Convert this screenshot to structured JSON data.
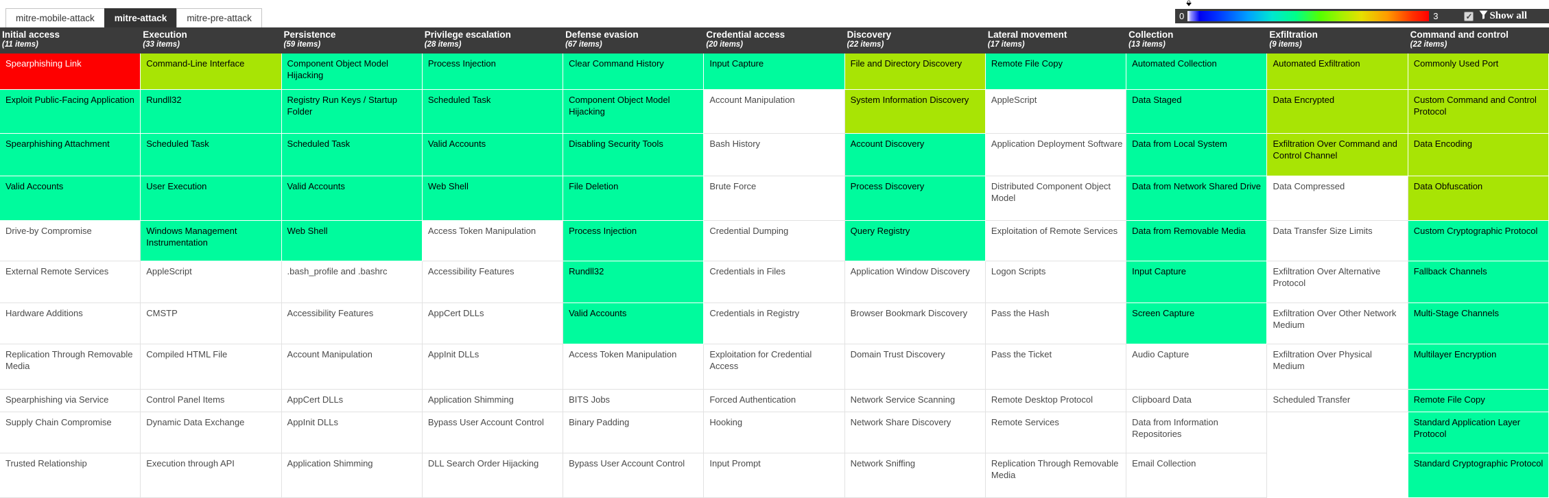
{
  "tabs": [
    {
      "label": "mitre-mobile-attack",
      "active": false
    },
    {
      "label": "mitre-attack",
      "active": true
    },
    {
      "label": "mitre-pre-attack",
      "active": false
    }
  ],
  "legend": {
    "min": "0",
    "max": "3",
    "handle_value": "0",
    "checkbox_checked": true,
    "show_all_label": "Show all"
  },
  "colors": {
    "green": "#00fb9d",
    "yellow": "#a8e405",
    "red": "#fe0000",
    "header_bg": "#3b3b3b"
  },
  "matrix": {
    "columns": [
      {
        "name": "Initial access",
        "items": "(11 items)",
        "techniques": [
          {
            "label": "Spearphishing Link",
            "color": "red"
          },
          {
            "label": "Exploit Public-Facing Application",
            "color": "green"
          },
          {
            "label": "Spearphishing Attachment",
            "color": "green"
          },
          {
            "label": "Valid Accounts",
            "color": "green"
          },
          {
            "label": "Drive-by Compromise",
            "color": "white"
          },
          {
            "label": "External Remote Services",
            "color": "white"
          },
          {
            "label": "Hardware Additions",
            "color": "white"
          },
          {
            "label": "Replication Through Removable Media",
            "color": "white"
          },
          {
            "label": "Spearphishing via Service",
            "color": "white"
          },
          {
            "label": "Supply Chain Compromise",
            "color": "white"
          },
          {
            "label": "Trusted Relationship",
            "color": "white"
          }
        ]
      },
      {
        "name": "Execution",
        "items": "(33 items)",
        "techniques": [
          {
            "label": "Command-Line Interface",
            "color": "yellow"
          },
          {
            "label": "Rundll32",
            "color": "green"
          },
          {
            "label": "Scheduled Task",
            "color": "green"
          },
          {
            "label": "User Execution",
            "color": "green"
          },
          {
            "label": "Windows Management Instrumentation",
            "color": "green"
          },
          {
            "label": "AppleScript",
            "color": "white"
          },
          {
            "label": "CMSTP",
            "color": "white"
          },
          {
            "label": "Compiled HTML File",
            "color": "white"
          },
          {
            "label": "Control Panel Items",
            "color": "white"
          },
          {
            "label": "Dynamic Data Exchange",
            "color": "white"
          },
          {
            "label": "Execution through API",
            "color": "white"
          }
        ]
      },
      {
        "name": "Persistence",
        "items": "(59 items)",
        "techniques": [
          {
            "label": "Component Object Model Hijacking",
            "color": "green"
          },
          {
            "label": "Registry Run Keys / Startup Folder",
            "color": "green"
          },
          {
            "label": "Scheduled Task",
            "color": "green"
          },
          {
            "label": "Valid Accounts",
            "color": "green"
          },
          {
            "label": "Web Shell",
            "color": "green"
          },
          {
            "label": ".bash_profile and .bashrc",
            "color": "white"
          },
          {
            "label": "Accessibility Features",
            "color": "white"
          },
          {
            "label": "Account Manipulation",
            "color": "white"
          },
          {
            "label": "AppCert DLLs",
            "color": "white"
          },
          {
            "label": "AppInit DLLs",
            "color": "white"
          },
          {
            "label": "Application Shimming",
            "color": "white"
          }
        ]
      },
      {
        "name": "Privilege escalation",
        "items": "(28 items)",
        "techniques": [
          {
            "label": "Process Injection",
            "color": "green"
          },
          {
            "label": "Scheduled Task",
            "color": "green"
          },
          {
            "label": "Valid Accounts",
            "color": "green"
          },
          {
            "label": "Web Shell",
            "color": "green"
          },
          {
            "label": "Access Token Manipulation",
            "color": "white"
          },
          {
            "label": "Accessibility Features",
            "color": "white"
          },
          {
            "label": "AppCert DLLs",
            "color": "white"
          },
          {
            "label": "AppInit DLLs",
            "color": "white"
          },
          {
            "label": "Application Shimming",
            "color": "white"
          },
          {
            "label": "Bypass User Account Control",
            "color": "white"
          },
          {
            "label": "DLL Search Order Hijacking",
            "color": "white"
          }
        ]
      },
      {
        "name": "Defense evasion",
        "items": "(67 items)",
        "techniques": [
          {
            "label": "Clear Command History",
            "color": "green"
          },
          {
            "label": "Component Object Model Hijacking",
            "color": "green"
          },
          {
            "label": "Disabling Security Tools",
            "color": "green"
          },
          {
            "label": "File Deletion",
            "color": "green"
          },
          {
            "label": "Process Injection",
            "color": "green"
          },
          {
            "label": "Rundll32",
            "color": "green"
          },
          {
            "label": "Valid Accounts",
            "color": "green"
          },
          {
            "label": "Access Token Manipulation",
            "color": "white"
          },
          {
            "label": "BITS Jobs",
            "color": "white"
          },
          {
            "label": "Binary Padding",
            "color": "white"
          },
          {
            "label": "Bypass User Account Control",
            "color": "white"
          }
        ]
      },
      {
        "name": "Credential access",
        "items": "(20 items)",
        "techniques": [
          {
            "label": "Input Capture",
            "color": "green"
          },
          {
            "label": "Account Manipulation",
            "color": "white"
          },
          {
            "label": "Bash History",
            "color": "white"
          },
          {
            "label": "Brute Force",
            "color": "white"
          },
          {
            "label": "Credential Dumping",
            "color": "white"
          },
          {
            "label": "Credentials in Files",
            "color": "white"
          },
          {
            "label": "Credentials in Registry",
            "color": "white"
          },
          {
            "label": "Exploitation for Credential Access",
            "color": "white"
          },
          {
            "label": "Forced Authentication",
            "color": "white"
          },
          {
            "label": "Hooking",
            "color": "white"
          },
          {
            "label": "Input Prompt",
            "color": "white"
          }
        ]
      },
      {
        "name": "Discovery",
        "items": "(22 items)",
        "techniques": [
          {
            "label": "File and Directory Discovery",
            "color": "yellow"
          },
          {
            "label": "System Information Discovery",
            "color": "yellow"
          },
          {
            "label": "Account Discovery",
            "color": "green"
          },
          {
            "label": "Process Discovery",
            "color": "green"
          },
          {
            "label": "Query Registry",
            "color": "green"
          },
          {
            "label": "Application Window Discovery",
            "color": "white"
          },
          {
            "label": "Browser Bookmark Discovery",
            "color": "white"
          },
          {
            "label": "Domain Trust Discovery",
            "color": "white"
          },
          {
            "label": "Network Service Scanning",
            "color": "white"
          },
          {
            "label": "Network Share Discovery",
            "color": "white"
          },
          {
            "label": "Network Sniffing",
            "color": "white"
          }
        ]
      },
      {
        "name": "Lateral movement",
        "items": "(17 items)",
        "techniques": [
          {
            "label": "Remote File Copy",
            "color": "green"
          },
          {
            "label": "AppleScript",
            "color": "white"
          },
          {
            "label": "Application Deployment Software",
            "color": "white"
          },
          {
            "label": "Distributed Component Object Model",
            "color": "white"
          },
          {
            "label": "Exploitation of Remote Services",
            "color": "white"
          },
          {
            "label": "Logon Scripts",
            "color": "white"
          },
          {
            "label": "Pass the Hash",
            "color": "white"
          },
          {
            "label": "Pass the Ticket",
            "color": "white"
          },
          {
            "label": "Remote Desktop Protocol",
            "color": "white"
          },
          {
            "label": "Remote Services",
            "color": "white"
          },
          {
            "label": "Replication Through Removable Media",
            "color": "white"
          }
        ]
      },
      {
        "name": "Collection",
        "items": "(13 items)",
        "techniques": [
          {
            "label": "Automated Collection",
            "color": "green"
          },
          {
            "label": "Data Staged",
            "color": "green"
          },
          {
            "label": "Data from Local System",
            "color": "green"
          },
          {
            "label": "Data from Network Shared Drive",
            "color": "green"
          },
          {
            "label": "Data from Removable Media",
            "color": "green"
          },
          {
            "label": "Input Capture",
            "color": "green"
          },
          {
            "label": "Screen Capture",
            "color": "green"
          },
          {
            "label": "Audio Capture",
            "color": "white"
          },
          {
            "label": "Clipboard Data",
            "color": "white"
          },
          {
            "label": "Data from Information Repositories",
            "color": "white"
          },
          {
            "label": "Email Collection",
            "color": "white"
          }
        ]
      },
      {
        "name": "Exfiltration",
        "items": "(9 items)",
        "techniques": [
          {
            "label": "Automated Exfiltration",
            "color": "yellow"
          },
          {
            "label": "Data Encrypted",
            "color": "yellow"
          },
          {
            "label": "Exfiltration Over Command and Control Channel",
            "color": "yellow"
          },
          {
            "label": "Data Compressed",
            "color": "white"
          },
          {
            "label": "Data Transfer Size Limits",
            "color": "white"
          },
          {
            "label": "Exfiltration Over Alternative Protocol",
            "color": "white"
          },
          {
            "label": "Exfiltration Over Other Network Medium",
            "color": "white"
          },
          {
            "label": "Exfiltration Over Physical Medium",
            "color": "white"
          },
          {
            "label": "Scheduled Transfer",
            "color": "white"
          }
        ]
      },
      {
        "name": "Command and control",
        "items": "(22 items)",
        "techniques": [
          {
            "label": "Commonly Used Port",
            "color": "yellow"
          },
          {
            "label": "Custom Command and Control Protocol",
            "color": "yellow"
          },
          {
            "label": "Data Encoding",
            "color": "yellow"
          },
          {
            "label": "Data Obfuscation",
            "color": "yellow"
          },
          {
            "label": "Custom Cryptographic Protocol",
            "color": "green"
          },
          {
            "label": "Fallback Channels",
            "color": "green"
          },
          {
            "label": "Multi-Stage Channels",
            "color": "green"
          },
          {
            "label": "Multilayer Encryption",
            "color": "green"
          },
          {
            "label": "Remote File Copy",
            "color": "green"
          },
          {
            "label": "Standard Application Layer Protocol",
            "color": "green"
          },
          {
            "label": "Standard Cryptographic Protocol",
            "color": "green"
          }
        ]
      }
    ]
  }
}
